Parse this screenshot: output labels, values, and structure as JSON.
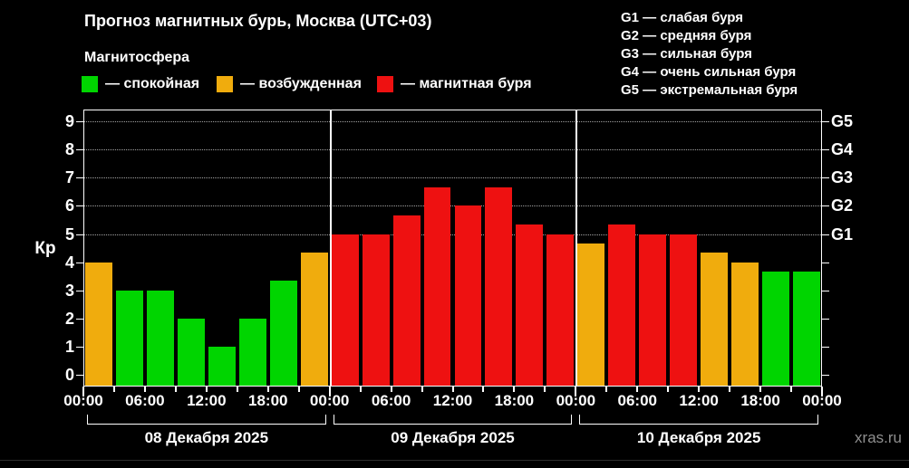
{
  "header": {
    "title": "Прогноз магнитных бурь, Москва (UTC+03)",
    "subtitle": "Магнитосфера",
    "legend": [
      {
        "label": "— спокойная",
        "state": "quiet"
      },
      {
        "label": "— возбужденная",
        "state": "excited"
      },
      {
        "label": "— магнитная буря",
        "state": "storm"
      }
    ],
    "g_scale": [
      "G1 — слабая буря",
      "G2 — средняя буря",
      "G3 — сильная буря",
      "G4 — очень сильная буря",
      "G5 — экстремальная буря"
    ]
  },
  "colors": {
    "quiet": "#00d500",
    "excited": "#f0ac0d",
    "storm": "#ee1111",
    "background": "#000000",
    "axis": "#ffffff",
    "grid": "#a3a3a3",
    "watermark": "#8f8f8f"
  },
  "watermark": "xras.ru",
  "chart_data": {
    "type": "bar",
    "title": "Прогноз магнитных бурь, Москва (UTC+03)",
    "ylabel": "Кр",
    "xlabel": "",
    "ylim": [
      0,
      9
    ],
    "y_ticks": [
      0,
      1,
      2,
      3,
      4,
      5,
      6,
      7,
      8,
      9
    ],
    "grid_levels": [
      5,
      6,
      7,
      8,
      9
    ],
    "right_axis": [
      {
        "kp": 5,
        "label": "G1"
      },
      {
        "kp": 6,
        "label": "G2"
      },
      {
        "kp": 7,
        "label": "G3"
      },
      {
        "kp": 8,
        "label": "G4"
      },
      {
        "kp": 9,
        "label": "G5"
      }
    ],
    "bar_interval_hours": 3,
    "x_tick_labels": [
      "00:00",
      "06:00",
      "12:00",
      "18:00",
      "00:00",
      "06:00",
      "12:00",
      "18:00",
      "00:00",
      "06:00",
      "12:00",
      "18:00",
      "00:00"
    ],
    "days": [
      {
        "date": "08 Декабря 2025",
        "values": [
          4,
          3,
          3,
          2,
          1,
          2,
          3.33,
          4.33
        ],
        "states": [
          "excited",
          "quiet",
          "quiet",
          "quiet",
          "quiet",
          "quiet",
          "quiet",
          "excited"
        ]
      },
      {
        "date": "09 Декабря 2025",
        "values": [
          5,
          5,
          5.67,
          6.67,
          6,
          6.67,
          5.33,
          5
        ],
        "states": [
          "storm",
          "storm",
          "storm",
          "storm",
          "storm",
          "storm",
          "storm",
          "storm"
        ]
      },
      {
        "date": "10 Декабря 2025",
        "values": [
          4.67,
          5.33,
          5,
          5,
          4.33,
          4,
          3.67,
          3.67
        ],
        "states": [
          "excited",
          "storm",
          "storm",
          "storm",
          "excited",
          "excited",
          "quiet",
          "quiet"
        ]
      }
    ]
  }
}
